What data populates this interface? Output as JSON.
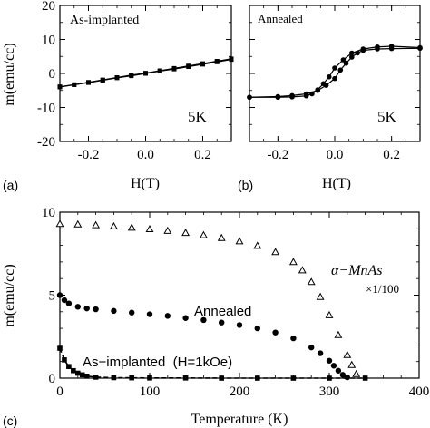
{
  "chart_data": [
    {
      "panel": "(a)",
      "type": "line",
      "xlabel": "H(T)",
      "ylabel": "m(emu/cc)",
      "xlim": [
        -0.3,
        0.3
      ],
      "ylim": [
        -20,
        20
      ],
      "xticks": [
        "-0.2",
        "0.0",
        "0.2"
      ],
      "xtick_values": [
        -0.2,
        0.0,
        0.2
      ],
      "yticks": [
        "-20",
        "-10",
        "0",
        "10",
        "20"
      ],
      "ytick_values": [
        -20,
        -10,
        0,
        10,
        20
      ],
      "annotations": [
        "As-implanted",
        "5K"
      ],
      "series": [
        {
          "x": [
            -0.3,
            -0.25,
            -0.2,
            -0.15,
            -0.1,
            -0.05,
            0.0,
            0.05,
            0.1,
            0.15,
            0.2,
            0.25,
            0.3
          ],
          "y": [
            -4.0,
            -3.3,
            -2.7,
            -2.0,
            -1.3,
            -0.7,
            0.0,
            0.7,
            1.3,
            2.0,
            2.7,
            3.4,
            4.1
          ]
        },
        {
          "x": [
            0.3,
            0.25,
            0.2,
            0.15,
            0.1,
            0.05,
            0.0,
            -0.05,
            -0.1,
            -0.15,
            -0.2,
            -0.25,
            -0.3
          ],
          "y": [
            4.3,
            3.6,
            2.9,
            2.2,
            1.5,
            0.8,
            0.1,
            -0.5,
            -1.2,
            -1.9,
            -2.6,
            -3.3,
            -3.9
          ]
        }
      ]
    },
    {
      "panel": "(b)",
      "type": "line",
      "xlabel": "H(T)",
      "ylabel": "",
      "xlim": [
        -0.3,
        0.3
      ],
      "ylim": [
        -20,
        20
      ],
      "xticks": [
        "-0.2",
        "0.0",
        "0.2"
      ],
      "xtick_values": [
        -0.2,
        0.0,
        0.2
      ],
      "annotations": [
        "Annealed",
        "5K"
      ],
      "series": [
        {
          "x": [
            -0.3,
            -0.2,
            -0.15,
            -0.1,
            -0.06,
            -0.03,
            0.0,
            0.02,
            0.04,
            0.06,
            0.08,
            0.1,
            0.15,
            0.2,
            0.3
          ],
          "y": [
            -7.0,
            -6.8,
            -6.5,
            -6.0,
            -5.0,
            -3.5,
            -1.5,
            1.0,
            3.0,
            4.8,
            6.0,
            6.8,
            7.2,
            7.3,
            7.4
          ]
        },
        {
          "x": [
            0.3,
            0.2,
            0.15,
            0.1,
            0.06,
            0.03,
            0.0,
            -0.02,
            -0.04,
            -0.06,
            -0.08,
            -0.1,
            -0.15,
            -0.2,
            -0.3
          ],
          "y": [
            7.6,
            8.0,
            7.8,
            7.2,
            6.0,
            4.0,
            1.6,
            -1.0,
            -3.0,
            -4.8,
            -6.0,
            -6.6,
            -6.9,
            -7.0,
            -7.0
          ]
        }
      ]
    },
    {
      "panel": "(c)",
      "type": "scatter",
      "xlabel": "Temperature (K)",
      "ylabel": "m(emu/cc)",
      "xlim": [
        0,
        400
      ],
      "ylim": [
        0,
        10
      ],
      "xticks": [
        "0",
        "100",
        "200",
        "300",
        "400"
      ],
      "xtick_values": [
        0,
        100,
        200,
        300,
        400
      ],
      "yticks": [
        "0",
        "5",
        "10"
      ],
      "ytick_values": [
        0,
        5,
        10
      ],
      "annotations": [
        "α−MnAs",
        "×1/100",
        "Annealed",
        "As−implanted  (H=1kOe)"
      ],
      "series": [
        {
          "name": "α−MnAs ×1/100",
          "marker": "triangle",
          "x": [
            0,
            20,
            40,
            60,
            80,
            100,
            120,
            140,
            160,
            180,
            200,
            220,
            240,
            260,
            270,
            280,
            290,
            300,
            310,
            320,
            325,
            330
          ],
          "y": [
            9.3,
            9.27,
            9.22,
            9.15,
            9.07,
            8.98,
            8.88,
            8.76,
            8.62,
            8.45,
            8.25,
            7.98,
            7.6,
            7.0,
            6.5,
            5.8,
            4.9,
            3.8,
            2.6,
            1.4,
            0.8,
            0.25
          ]
        },
        {
          "name": "Annealed",
          "marker": "circle",
          "x": [
            0,
            5,
            10,
            20,
            30,
            40,
            60,
            80,
            100,
            120,
            140,
            160,
            180,
            200,
            220,
            240,
            260,
            280,
            290,
            300,
            305,
            310,
            315,
            320
          ],
          "y": [
            5.0,
            4.7,
            4.5,
            4.3,
            4.2,
            4.15,
            4.05,
            3.95,
            3.85,
            3.75,
            3.62,
            3.5,
            3.35,
            3.2,
            3.0,
            2.75,
            2.4,
            1.85,
            1.5,
            1.05,
            0.75,
            0.45,
            0.2,
            0.05
          ]
        },
        {
          "name": "As-implanted (H=1kOe)",
          "marker": "square",
          "x": [
            0,
            5,
            10,
            15,
            20,
            25,
            30,
            40,
            60,
            80,
            100,
            140,
            180,
            220,
            260,
            300,
            340
          ],
          "y": [
            1.8,
            1.1,
            0.7,
            0.45,
            0.3,
            0.2,
            0.12,
            0.06,
            0.03,
            0.02,
            0.01,
            0.01,
            0.0,
            0.0,
            0.0,
            0.0,
            0.0
          ]
        }
      ]
    }
  ]
}
